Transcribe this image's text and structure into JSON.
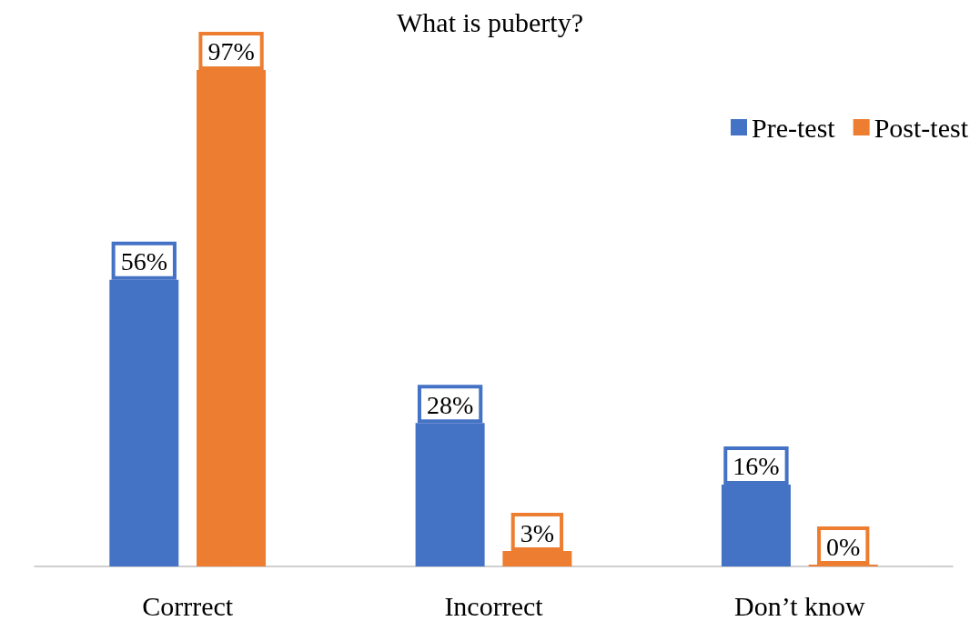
{
  "chart_data": {
    "type": "bar",
    "title": "What is puberty?",
    "categories": [
      "Corrrect",
      "Incorrect",
      "Don’t know"
    ],
    "series": [
      {
        "name": "Pre-test",
        "color": "#4472c4",
        "values": [
          56,
          28,
          16
        ],
        "value_labels": [
          "56%",
          "28%",
          "16%"
        ]
      },
      {
        "name": "Post-test",
        "color": "#ed7d31",
        "values": [
          97,
          3,
          0
        ],
        "value_labels": [
          "97%",
          "3%",
          "0%"
        ]
      }
    ],
    "legend": "top right"
  }
}
